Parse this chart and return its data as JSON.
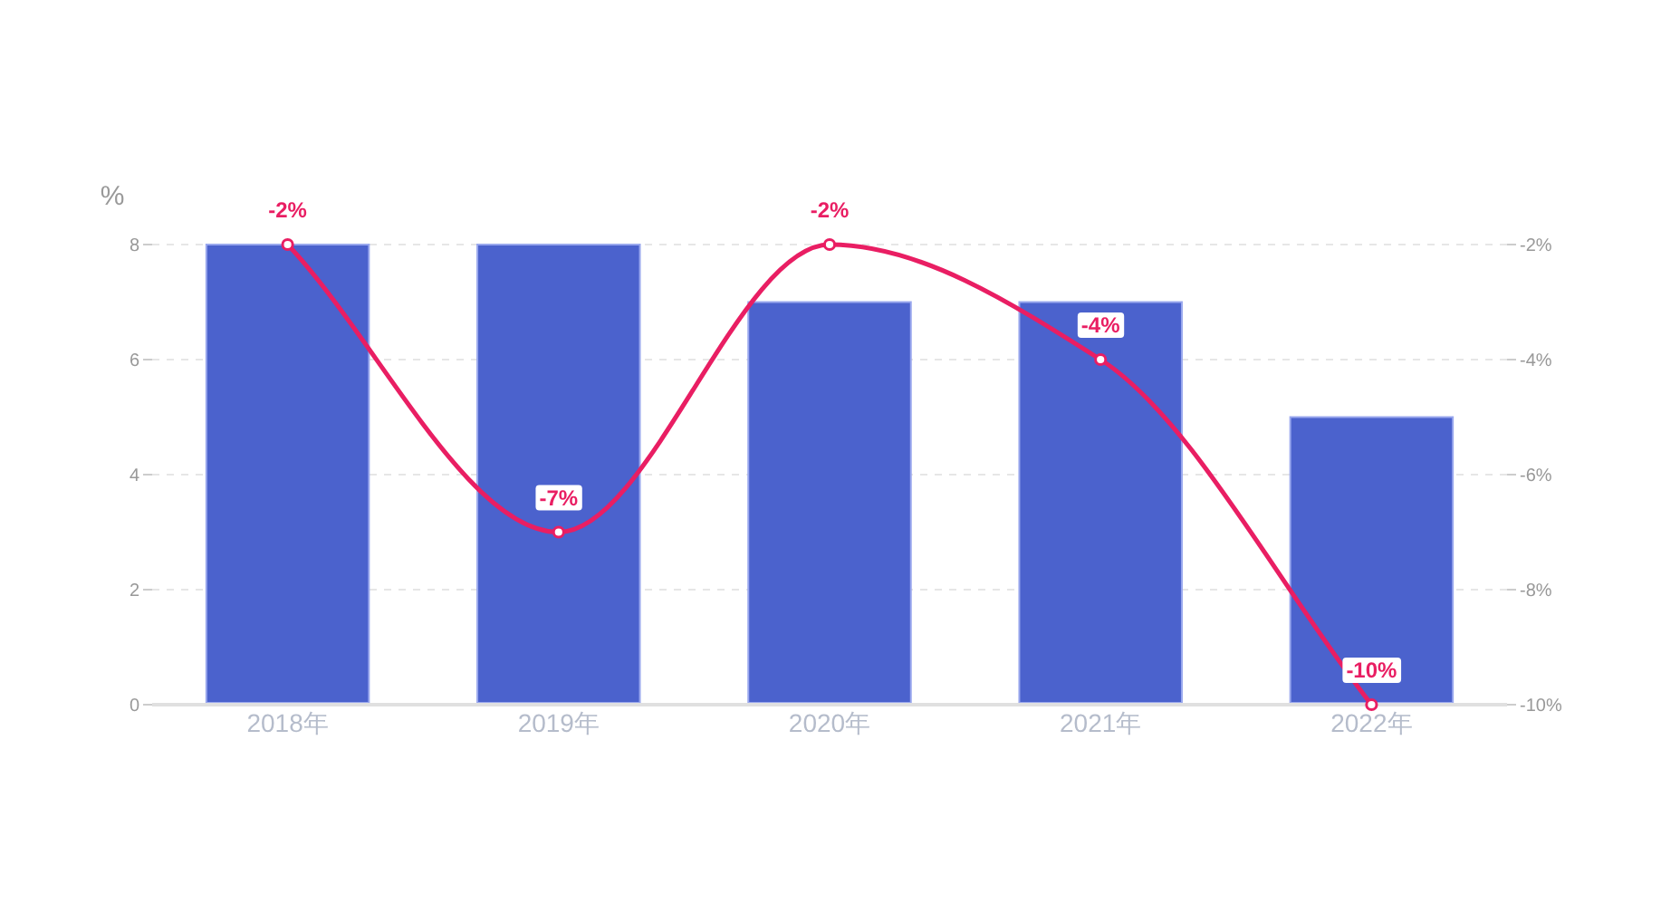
{
  "chart_data": {
    "type": "bar",
    "ylabel": "%",
    "categories": [
      "2018年",
      "2019年",
      "2020年",
      "2021年",
      "2022年"
    ],
    "series": [
      {
        "color": "#4b62cd",
        "values": [
          8,
          8,
          7,
          7,
          5
        ]
      },
      {
        "type": "line",
        "axis": "y2",
        "color": "#e91e63",
        "marker": "circle",
        "line_style": "solid",
        "values": [
          -2,
          -7,
          -2,
          -4,
          -10
        ],
        "value_labels": [
          "-2%",
          "-7%",
          "-2%",
          "-4%",
          "-10%"
        ]
      }
    ],
    "ylim": [
      0,
      8
    ],
    "yticks": [
      0,
      2,
      4,
      6,
      8
    ],
    "y2lim": [
      -10,
      -2
    ],
    "y2ticks": [
      {
        "value": -10,
        "label": "-10%"
      },
      {
        "value": -8,
        "label": "-8%"
      },
      {
        "value": -6,
        "label": "-6%"
      },
      {
        "value": -4,
        "label": "-4%"
      },
      {
        "value": -2,
        "label": "-2%"
      }
    ],
    "grid": "y"
  }
}
